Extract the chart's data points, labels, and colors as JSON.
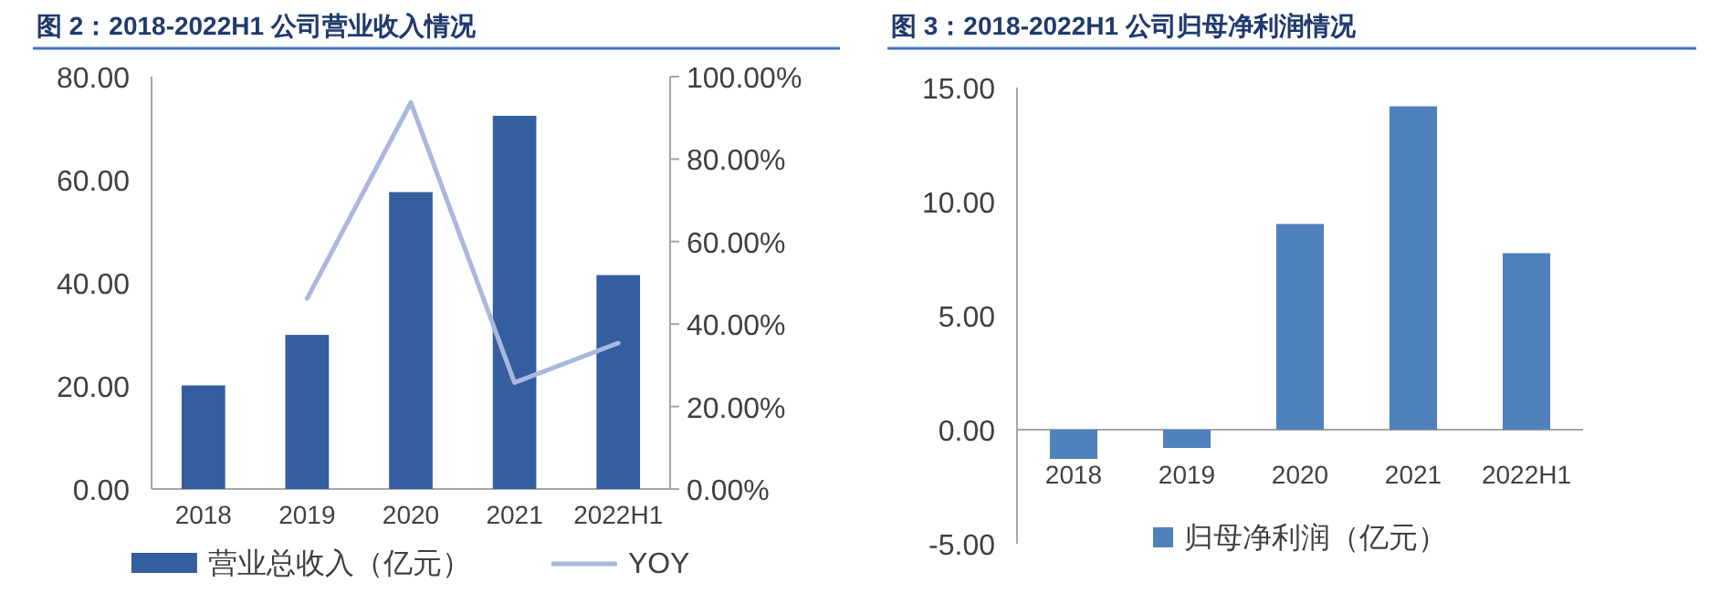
{
  "chart_data": [
    {
      "type": "bar",
      "title": "图 2：2018-2022H1 公司营业收入情况",
      "categories": [
        "2018",
        "2019",
        "2020",
        "2021",
        "2022H1"
      ],
      "series": [
        {
          "name": "营业总收入（亿元）",
          "color": "#355ea0",
          "values": [
            20.1,
            29.9,
            57.6,
            72.4,
            41.5
          ]
        },
        {
          "name": "YOY",
          "type": "line",
          "axis": "y2",
          "color": "#a9b8dd",
          "marker": "none",
          "values": [
            null,
            46.2,
            93.7,
            25.8,
            35.4
          ]
        }
      ],
      "ylim": [
        0,
        80
      ],
      "yticks": [
        {
          "value": 0,
          "label": "0.00"
        },
        {
          "value": 20,
          "label": "20.00"
        },
        {
          "value": 40,
          "label": "40.00"
        },
        {
          "value": 60,
          "label": "60.00"
        },
        {
          "value": 80,
          "label": "80.00"
        }
      ],
      "y2lim": [
        0,
        100
      ],
      "y2ticks": [
        {
          "value": 0,
          "label": "0.00%"
        },
        {
          "value": 20,
          "label": "20.00%"
        },
        {
          "value": 40,
          "label": "40.00%"
        },
        {
          "value": 60,
          "label": "60.00%"
        },
        {
          "value": 80,
          "label": "80.00%"
        },
        {
          "value": 100,
          "label": "100.00%"
        }
      ],
      "legend": "bottom"
    },
    {
      "type": "bar",
      "title": "图 3：2018-2022H1 公司归母净利润情况",
      "categories": [
        "2018",
        "2019",
        "2020",
        "2021",
        "2022H1"
      ],
      "series": [
        {
          "name": "归母净利润（亿元）",
          "color": "#4f81bd",
          "values": [
            -1.28,
            -0.8,
            9.02,
            14.18,
            7.74
          ]
        }
      ],
      "ylim": [
        -5,
        15
      ],
      "yticks": [
        {
          "value": -5,
          "label": "-5.00"
        },
        {
          "value": 0,
          "label": "0.00"
        },
        {
          "value": 5,
          "label": "5.00"
        },
        {
          "value": 10,
          "label": "10.00"
        },
        {
          "value": 15,
          "label": "15.00"
        }
      ],
      "legend": "bottom"
    }
  ]
}
